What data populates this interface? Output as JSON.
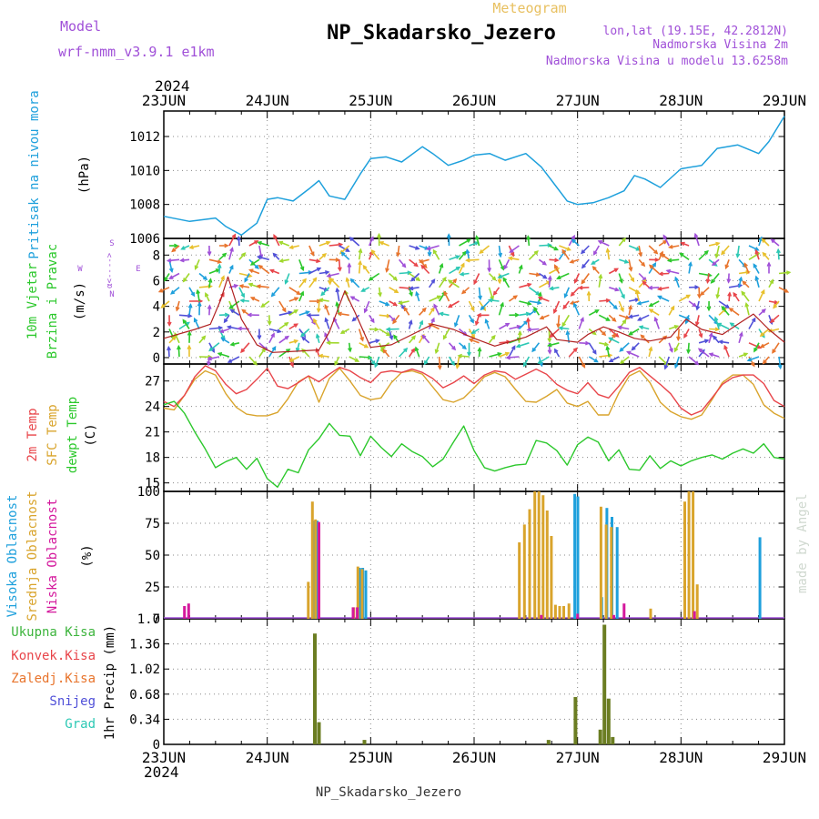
{
  "header": {
    "model_label": "Model",
    "model_name": "wrf-nmm_v3.9.1 e1km",
    "product": "Meteogram",
    "station": "NP_Skadarsko_Jezero",
    "coords": "lon,lat (19.15E, 42.2812N)",
    "elevation": "Nadmorska Visina 2m",
    "model_elevation": "Nadmorska Visina u modelu 13.6258m",
    "year_top": "2024",
    "year_bottom": "2024",
    "footer": "NP_Skadarsko_Jezero",
    "credit": "made by Angel"
  },
  "colors": {
    "pressure": "#1ea0dc",
    "temp2m": "#e8454a",
    "sfc": "#d9a42c",
    "dewpt": "#2cc82c",
    "high_cloud": "#1ea0dc",
    "mid_cloud": "#d9a42c",
    "low_cloud": "#d4189c",
    "total_rain": "#3cb43c",
    "conv_rain": "#e8454a",
    "frozen_rain": "#e8742c",
    "snow": "#5050d8",
    "hail": "#2cc8b4",
    "violet": "#a050d8",
    "grid": "#888888"
  },
  "chart_data": [
    {
      "type": "line",
      "panel": "pressure",
      "ylabels": [
        "Pritisak na nivou mora",
        "(hPa)"
      ],
      "ylim": [
        1006,
        1013.5
      ],
      "yticks": [
        1006,
        1008,
        1010,
        1012
      ],
      "x_ticks": [
        "23JUN",
        "24JUN",
        "25JUN",
        "26JUN",
        "27JUN",
        "28JUN",
        "29JUN"
      ],
      "x_days": [
        0,
        6
      ],
      "x": [
        0,
        0.25,
        0.5,
        0.6,
        0.75,
        0.9,
        1.0,
        1.1,
        1.25,
        1.4,
        1.5,
        1.6,
        1.75,
        1.9,
        2.0,
        2.15,
        2.3,
        2.5,
        2.6,
        2.75,
        2.9,
        3.0,
        3.15,
        3.3,
        3.5,
        3.65,
        3.75,
        3.9,
        4.0,
        4.15,
        4.3,
        4.45,
        4.55,
        4.65,
        4.8,
        5.0,
        5.2,
        5.35,
        5.55,
        5.75,
        5.85,
        6.0
      ],
      "series": [
        {
          "values": [
            1007.3,
            1007.0,
            1007.2,
            1006.7,
            1006.2,
            1006.9,
            1008.3,
            1008.4,
            1008.2,
            1008.9,
            1009.4,
            1008.5,
            1008.3,
            1009.8,
            1010.7,
            1010.8,
            1010.5,
            1011.4,
            1011.0,
            1010.3,
            1010.6,
            1010.9,
            1011.0,
            1010.6,
            1011.0,
            1010.2,
            1009.4,
            1008.2,
            1008.0,
            1008.1,
            1008.4,
            1008.8,
            1009.7,
            1009.5,
            1009.0,
            1010.1,
            1010.3,
            1011.3,
            1011.5,
            1011.0,
            1011.7,
            1013.2
          ]
        }
      ]
    },
    {
      "type": "line",
      "panel": "wind",
      "ylabels": [
        "10m Vjetar",
        "Brzina i Pravac",
        "(m/s)"
      ],
      "direction_legend": [
        "S",
        "W",
        "E",
        "N",
        "α<--",
        "-->"
      ],
      "ylim": [
        -0.5,
        9.3
      ],
      "yticks": [
        0,
        2,
        4,
        6,
        8
      ],
      "x": [
        0,
        0.3,
        0.45,
        0.55,
        0.62,
        0.75,
        0.9,
        1.05,
        1.3,
        1.5,
        1.6,
        1.75,
        1.85,
        2.0,
        2.2,
        2.4,
        2.6,
        2.8,
        3.0,
        3.2,
        3.5,
        3.7,
        3.8,
        4.0,
        4.1,
        4.25,
        4.4,
        4.55,
        4.7,
        4.9,
        5.05,
        5.2,
        5.4,
        5.55,
        5.7,
        5.85,
        6.0
      ],
      "series": [
        {
          "values": [
            1.5,
            2.2,
            2.6,
            4.5,
            6.3,
            3.0,
            1.0,
            0.4,
            0.5,
            0.6,
            2.0,
            5.2,
            3.5,
            0.8,
            1.0,
            1.8,
            2.6,
            2.2,
            1.5,
            0.9,
            1.6,
            2.4,
            1.4,
            1.2,
            1.8,
            2.4,
            2.0,
            1.5,
            1.3,
            1.6,
            3.0,
            2.2,
            1.8,
            2.6,
            3.4,
            2.2,
            1.2
          ]
        }
      ]
    },
    {
      "type": "line",
      "panel": "temperature",
      "ylabels": [
        "2m Temp",
        "SFC Temp",
        "dewpt Temp",
        "(C)"
      ],
      "ylim": [
        14,
        29
      ],
      "yticks": [
        15,
        18,
        21,
        24,
        27
      ],
      "x": [
        0,
        0.1,
        0.2,
        0.3,
        0.4,
        0.5,
        0.6,
        0.7,
        0.8,
        0.9,
        1.0,
        1.1,
        1.2,
        1.3,
        1.4,
        1.5,
        1.6,
        1.7,
        1.8,
        1.9,
        2.0,
        2.1,
        2.2,
        2.3,
        2.4,
        2.5,
        2.6,
        2.7,
        2.8,
        2.9,
        3.0,
        3.1,
        3.2,
        3.3,
        3.4,
        3.5,
        3.6,
        3.7,
        3.8,
        3.9,
        4.0,
        4.1,
        4.2,
        4.3,
        4.4,
        4.5,
        4.6,
        4.7,
        4.8,
        4.9,
        5.0,
        5.1,
        5.2,
        5.3,
        5.4,
        5.5,
        5.6,
        5.7,
        5.8,
        5.9,
        6.0
      ],
      "series": [
        {
          "name": "2m Temp",
          "values": [
            24.6,
            24.0,
            25.3,
            27.5,
            28.8,
            28.2,
            26.6,
            25.5,
            26.0,
            27.2,
            28.5,
            26.4,
            26.1,
            26.8,
            27.6,
            26.9,
            27.8,
            28.6,
            28.2,
            27.4,
            26.8,
            28.0,
            28.2,
            28.0,
            28.4,
            28.0,
            27.3,
            26.2,
            26.8,
            27.6,
            26.7,
            27.7,
            28.2,
            28.0,
            27.2,
            27.8,
            28.4,
            27.8,
            26.6,
            25.9,
            25.5,
            26.8,
            25.4,
            25.0,
            26.4,
            28.0,
            28.6,
            27.6,
            26.6,
            25.5,
            23.8,
            23.0,
            23.5,
            25.0,
            26.6,
            27.4,
            27.7,
            27.7,
            26.7,
            24.7,
            24.0
          ]
        },
        {
          "name": "SFC Temp",
          "values": [
            23.8,
            23.6,
            25.3,
            27.2,
            28.2,
            27.7,
            25.5,
            23.9,
            23.1,
            22.9,
            22.9,
            23.3,
            24.9,
            26.9,
            27.6,
            24.5,
            27.3,
            28.5,
            27.0,
            25.3,
            24.8,
            25.0,
            26.8,
            28.0,
            28.2,
            27.8,
            26.3,
            24.8,
            24.5,
            25.0,
            26.2,
            27.5,
            28.0,
            27.5,
            26.0,
            24.6,
            24.5,
            25.2,
            26.0,
            24.4,
            24.0,
            24.6,
            23.0,
            23.0,
            25.6,
            27.6,
            28.2,
            26.8,
            24.5,
            23.4,
            22.8,
            22.5,
            23.0,
            24.8,
            26.8,
            27.7,
            27.7,
            26.6,
            24.2,
            23.2,
            22.6
          ]
        },
        {
          "name": "dewpt Temp",
          "values": [
            24.2,
            24.6,
            23.2,
            21.0,
            19.0,
            16.8,
            17.5,
            18.0,
            16.6,
            17.9,
            15.5,
            14.5,
            16.6,
            16.2,
            18.9,
            20.2,
            22.0,
            20.6,
            20.5,
            18.2,
            20.5,
            19.2,
            18.1,
            19.6,
            18.7,
            18.1,
            16.9,
            17.8,
            19.8,
            21.7,
            18.8,
            16.8,
            16.4,
            16.8,
            17.1,
            17.2,
            20.0,
            19.7,
            18.8,
            17.1,
            19.5,
            20.4,
            19.8,
            17.6,
            18.9,
            16.6,
            16.5,
            18.2,
            16.7,
            17.6,
            17.0,
            17.6,
            18.0,
            18.3,
            17.8,
            18.5,
            19.0,
            18.5,
            19.6,
            18.0,
            17.8
          ]
        }
      ]
    },
    {
      "type": "bar",
      "panel": "cloud",
      "ylabels": [
        "Visoka Oblacnost",
        "Srednja Oblacnost",
        "Niska Oblacnost",
        "(%)"
      ],
      "ylim": [
        0,
        100
      ],
      "yticks": [
        0,
        25,
        50,
        75,
        100
      ],
      "series": [
        {
          "name": "Visoka Oblacnost",
          "x": [
            1.44,
            1.47,
            1.88,
            1.91,
            1.94,
            3.96,
            3.99,
            4.22,
            4.27,
            4.32,
            4.37,
            5.75
          ],
          "values": [
            77,
            77,
            40,
            40,
            38,
            98,
            96,
            17,
            87,
            80,
            72,
            64
          ]
        },
        {
          "name": "Srednja Oblacnost",
          "x": [
            1.41,
            1.45,
            1.48,
            1.85,
            1.89,
            1.93,
            3.45,
            3.5,
            3.55,
            3.6,
            3.64,
            3.68,
            3.72,
            3.76,
            3.8,
            3.84,
            3.88,
            3.93,
            4.24,
            4.29,
            4.34,
            4.72,
            5.05,
            5.09,
            5.13,
            5.17
          ],
          "values": [
            29,
            92,
            78,
            9,
            41,
            39,
            60,
            74,
            86,
            100,
            100,
            97,
            85,
            65,
            11,
            10,
            10,
            12,
            88,
            74,
            72,
            8,
            92,
            100,
            100,
            27
          ]
        },
        {
          "name": "Niska Oblacnost",
          "x": [
            0.2,
            0.24,
            1.5,
            1.83,
            1.87,
            3.65,
            4.0,
            4.35,
            4.45,
            5.13
          ],
          "values": [
            10,
            12,
            76,
            9,
            9,
            3,
            4,
            3,
            12,
            6
          ]
        }
      ]
    },
    {
      "type": "bar",
      "panel": "precip",
      "ylabels": [
        "1hr Precip (mm)"
      ],
      "legend": [
        "Ukupna Kisa",
        "Konvek.Kisa",
        "Zaledj.Kisa",
        "Snijeg",
        "Grad"
      ],
      "ylim": [
        0,
        1.7
      ],
      "yticks": [
        0,
        0.34,
        0.68,
        1.02,
        1.36,
        1.7
      ],
      "yticklabels": [
        "0",
        "0.34",
        "0.68",
        "1.02",
        "1.36",
        "1.7"
      ],
      "series": [
        {
          "name": "Ukupna Kisa",
          "x": [
            1.46,
            1.5,
            1.94,
            3.72,
            3.98,
            4.22,
            4.26,
            4.3,
            4.34
          ],
          "values": [
            1.5,
            0.3,
            0.06,
            0.06,
            0.64,
            0.2,
            1.62,
            0.62,
            0.1
          ]
        }
      ]
    }
  ]
}
